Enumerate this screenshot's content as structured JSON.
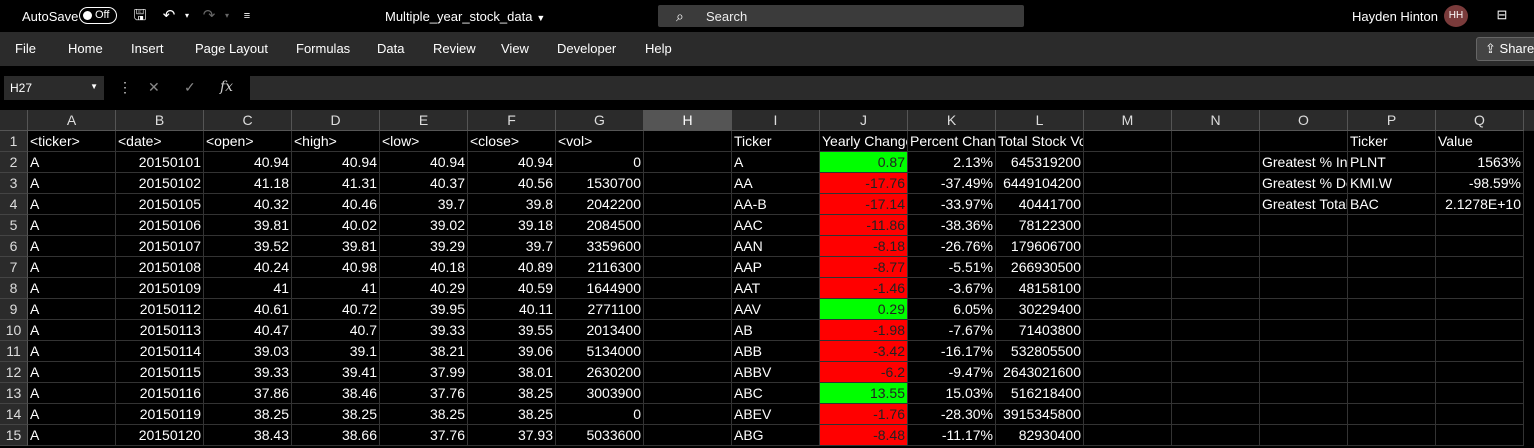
{
  "titlebar": {
    "autosave_label": "AutoSave",
    "autosave_state": "Off",
    "doc_title": "Multiple_year_stock_data",
    "search_placeholder": "Search",
    "user_name": "Hayden Hinton",
    "user_initials": "HH"
  },
  "menu": {
    "items": [
      "File",
      "Home",
      "Insert",
      "Page Layout",
      "Formulas",
      "Data",
      "Review",
      "View",
      "Developer",
      "Help"
    ],
    "share_label": "Share"
  },
  "formula_bar": {
    "name_box": "H27",
    "formula": ""
  },
  "sheet": {
    "active_column": "H",
    "columns": [
      {
        "letter": "A"
      },
      {
        "letter": "B"
      },
      {
        "letter": "C"
      },
      {
        "letter": "D"
      },
      {
        "letter": "E"
      },
      {
        "letter": "F"
      },
      {
        "letter": "G"
      },
      {
        "letter": "H"
      },
      {
        "letter": "I"
      },
      {
        "letter": "J"
      },
      {
        "letter": "K"
      },
      {
        "letter": "L"
      },
      {
        "letter": "M"
      },
      {
        "letter": "N"
      },
      {
        "letter": "O"
      },
      {
        "letter": "P"
      },
      {
        "letter": "Q"
      }
    ],
    "rows": [
      {
        "n": "1",
        "A": "<ticker>",
        "B": "<date>",
        "C": "<open>",
        "D": "<high>",
        "E": "<low>",
        "F": "<close>",
        "G": "<vol>",
        "I": "Ticker",
        "J": "Yearly Change",
        "K": "Percent Change",
        "L": "Total Stock Volume",
        "P": "Ticker",
        "Q": "Value"
      },
      {
        "n": "2",
        "A": "A",
        "B": "20150101",
        "C": "40.94",
        "D": "40.94",
        "E": "40.94",
        "F": "40.94",
        "G": "0",
        "I": "A",
        "J": "0.87",
        "Jc": "green",
        "K": "2.13%",
        "L": "645319200",
        "O": "Greatest % Increase",
        "P": "PLNT",
        "Q": "1563%"
      },
      {
        "n": "3",
        "A": "A",
        "B": "20150102",
        "C": "41.18",
        "D": "41.31",
        "E": "40.37",
        "F": "40.56",
        "G": "1530700",
        "I": "AA",
        "J": "-17.76",
        "Jc": "red",
        "K": "-37.49%",
        "L": "6449104200",
        "O": "Greatest % Decrease",
        "P": "KMI.W",
        "Q": "-98.59%"
      },
      {
        "n": "4",
        "A": "A",
        "B": "20150105",
        "C": "40.32",
        "D": "40.46",
        "E": "39.7",
        "F": "39.8",
        "G": "2042200",
        "I": "AA-B",
        "J": "-17.14",
        "Jc": "red",
        "K": "-33.97%",
        "L": "40441700",
        "O": "Greatest Total Volume",
        "P": "BAC",
        "Q": "2.1278E+10"
      },
      {
        "n": "5",
        "A": "A",
        "B": "20150106",
        "C": "39.81",
        "D": "40.02",
        "E": "39.02",
        "F": "39.18",
        "G": "2084500",
        "I": "AAC",
        "J": "-11.86",
        "Jc": "red",
        "K": "-38.36%",
        "L": "78122300"
      },
      {
        "n": "6",
        "A": "A",
        "B": "20150107",
        "C": "39.52",
        "D": "39.81",
        "E": "39.29",
        "F": "39.7",
        "G": "3359600",
        "I": "AAN",
        "J": "-8.18",
        "Jc": "red",
        "K": "-26.76%",
        "L": "179606700"
      },
      {
        "n": "7",
        "A": "A",
        "B": "20150108",
        "C": "40.24",
        "D": "40.98",
        "E": "40.18",
        "F": "40.89",
        "G": "2116300",
        "I": "AAP",
        "J": "-8.77",
        "Jc": "red",
        "K": "-5.51%",
        "L": "266930500"
      },
      {
        "n": "8",
        "A": "A",
        "B": "20150109",
        "C": "41",
        "D": "41",
        "E": "40.29",
        "F": "40.59",
        "G": "1644900",
        "I": "AAT",
        "J": "-1.46",
        "Jc": "red",
        "K": "-3.67%",
        "L": "48158100"
      },
      {
        "n": "9",
        "A": "A",
        "B": "20150112",
        "C": "40.61",
        "D": "40.72",
        "E": "39.95",
        "F": "40.11",
        "G": "2771100",
        "I": "AAV",
        "J": "0.29",
        "Jc": "green",
        "K": "6.05%",
        "L": "30229400"
      },
      {
        "n": "10",
        "A": "A",
        "B": "20150113",
        "C": "40.47",
        "D": "40.7",
        "E": "39.33",
        "F": "39.55",
        "G": "2013400",
        "I": "AB",
        "J": "-1.98",
        "Jc": "red",
        "K": "-7.67%",
        "L": "71403800"
      },
      {
        "n": "11",
        "A": "A",
        "B": "20150114",
        "C": "39.03",
        "D": "39.1",
        "E": "38.21",
        "F": "39.06",
        "G": "5134000",
        "I": "ABB",
        "J": "-3.42",
        "Jc": "red",
        "K": "-16.17%",
        "L": "532805500"
      },
      {
        "n": "12",
        "A": "A",
        "B": "20150115",
        "C": "39.33",
        "D": "39.41",
        "E": "37.99",
        "F": "38.01",
        "G": "2630200",
        "I": "ABBV",
        "J": "-6.2",
        "Jc": "red",
        "K": "-9.47%",
        "L": "2643021600"
      },
      {
        "n": "13",
        "A": "A",
        "B": "20150116",
        "C": "37.86",
        "D": "38.46",
        "E": "37.76",
        "F": "38.25",
        "G": "3003900",
        "I": "ABC",
        "J": "13.55",
        "Jc": "green",
        "K": "15.03%",
        "L": "516218400"
      },
      {
        "n": "14",
        "A": "A",
        "B": "20150119",
        "C": "38.25",
        "D": "38.25",
        "E": "38.25",
        "F": "38.25",
        "G": "0",
        "I": "ABEV",
        "J": "-1.76",
        "Jc": "red",
        "K": "-28.30%",
        "L": "3915345800"
      },
      {
        "n": "15",
        "A": "A",
        "B": "20150120",
        "C": "38.43",
        "D": "38.66",
        "E": "37.76",
        "F": "37.93",
        "G": "5033600",
        "I": "ABG",
        "J": "-8.48",
        "Jc": "red",
        "K": "-11.17%",
        "L": "82930400"
      }
    ]
  }
}
